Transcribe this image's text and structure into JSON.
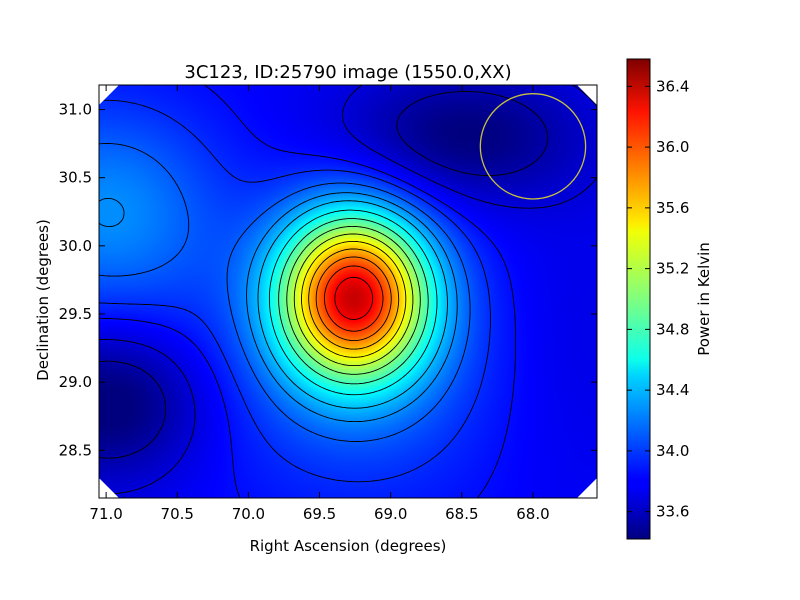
{
  "chart_data": {
    "type": "heatmap",
    "title": "3C123, ID:25790 image (1550.0,XX)",
    "xlabel": "Right Ascension (degrees)",
    "ylabel": "Declination (degrees)",
    "xlim": [
      71.05,
      67.55
    ],
    "ylim": [
      28.15,
      31.18
    ],
    "x_ticks": [
      "71.0",
      "70.5",
      "70.0",
      "69.5",
      "69.0",
      "68.5",
      "68.0"
    ],
    "y_ticks": [
      "28.5",
      "29.0",
      "29.5",
      "30.0",
      "30.5",
      "31.0"
    ],
    "colormap": "jet",
    "colorbar": {
      "label": "Power in Kelvin",
      "range": [
        33.42,
        36.58
      ],
      "ticks": [
        "33.6",
        "34.0",
        "34.4",
        "34.8",
        "35.2",
        "35.6",
        "36.0",
        "36.4"
      ]
    },
    "source_peak": {
      "ra": 69.26,
      "dec": 29.63,
      "value": 36.55
    },
    "background_level": 33.95,
    "contour_levels": [
      33.55,
      33.7,
      33.85,
      33.95,
      34.1,
      34.25,
      34.4,
      34.6,
      34.8,
      35.0,
      35.2,
      35.4,
      35.6,
      35.8,
      36.0,
      36.2,
      36.4
    ],
    "beam_marker": {
      "ra": 68.0,
      "dec": 30.73,
      "radius_deg": 0.37,
      "color": "#c8c040"
    },
    "corner_masks": true
  }
}
